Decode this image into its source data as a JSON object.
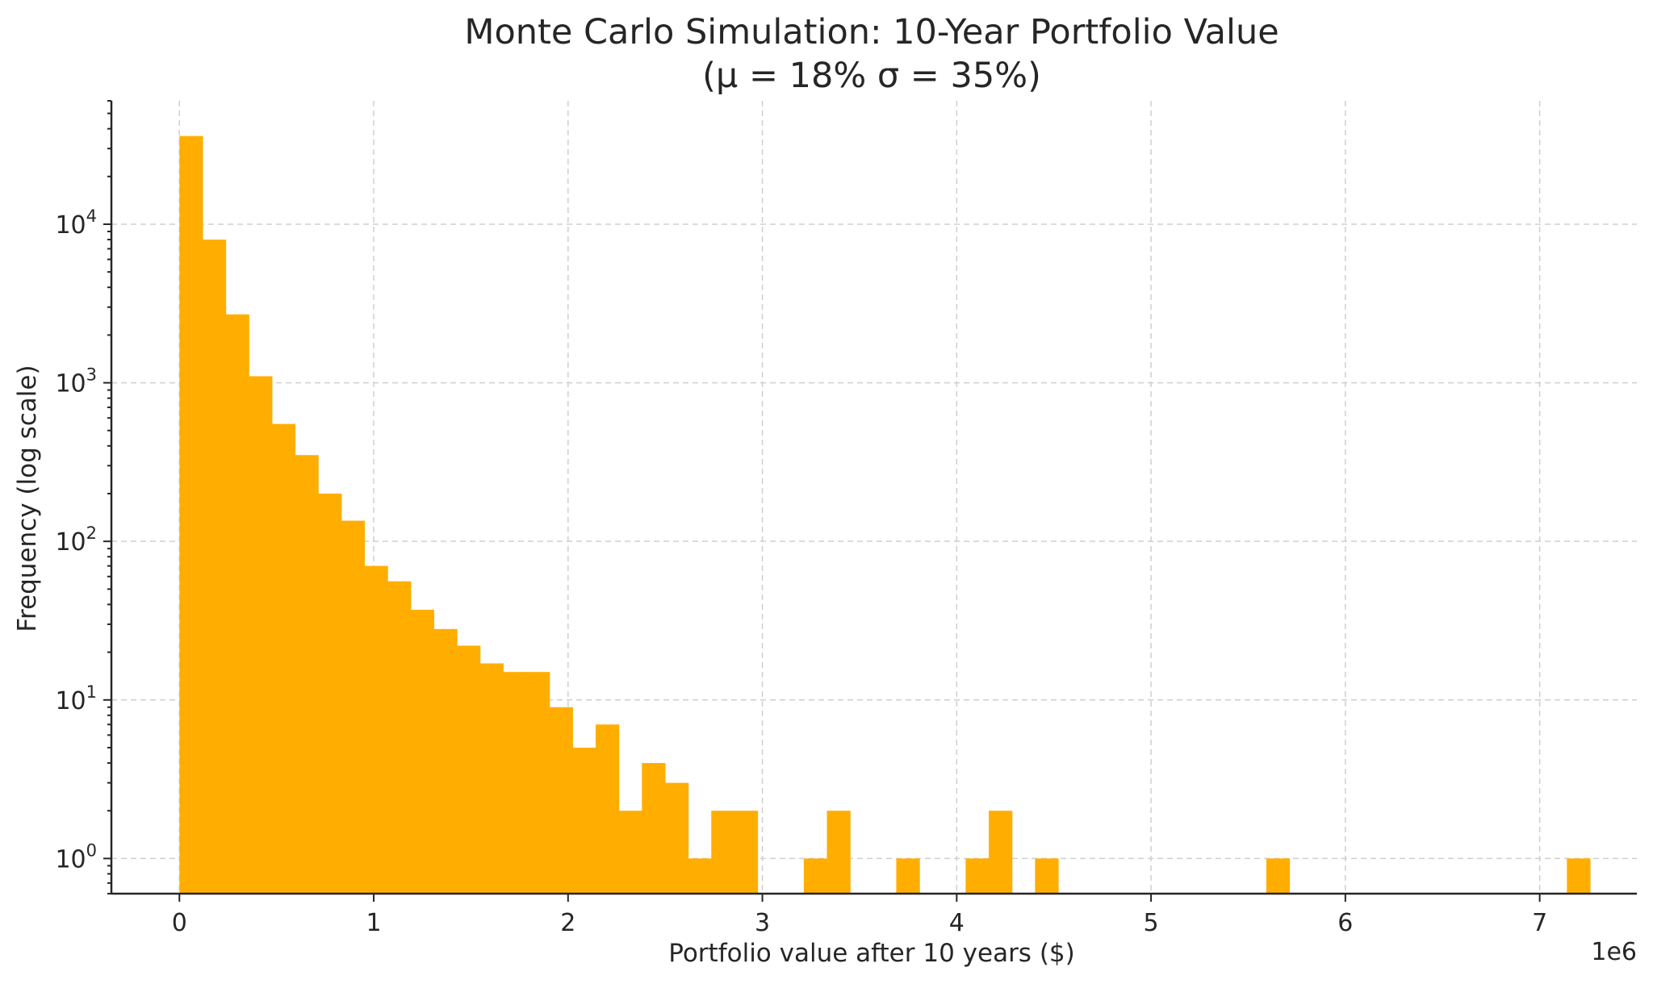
{
  "chart_data": {
    "type": "bar",
    "title": "Monte Carlo Simulation: 10-Year Portfolio Value",
    "subtitle": "(μ = 18%  σ = 35%)",
    "xlabel": "Portfolio value after 10 years ($)",
    "ylabel": "Frequency (log scale)",
    "x_offset_text": "1e6",
    "x_scale_multiplier": 1000000,
    "y_scale": "log",
    "xlim": [
      -350000,
      7500000
    ],
    "ylim": [
      0.6,
      60000
    ],
    "grid": true,
    "bar_color": "#FFAE00",
    "x_ticks": [
      {
        "value": 0,
        "label": "0"
      },
      {
        "value": 1000000,
        "label": "1"
      },
      {
        "value": 2000000,
        "label": "2"
      },
      {
        "value": 3000000,
        "label": "3"
      },
      {
        "value": 4000000,
        "label": "4"
      },
      {
        "value": 5000000,
        "label": "5"
      },
      {
        "value": 6000000,
        "label": "6"
      },
      {
        "value": 7000000,
        "label": "7"
      }
    ],
    "y_ticks": [
      {
        "value": 1,
        "base": "10",
        "exp": "0"
      },
      {
        "value": 10,
        "base": "10",
        "exp": "1"
      },
      {
        "value": 100,
        "base": "10",
        "exp": "2"
      },
      {
        "value": 1000,
        "base": "10",
        "exp": "3"
      },
      {
        "value": 10000,
        "base": "10",
        "exp": "4"
      }
    ],
    "bin_start": 0,
    "bin_width": 119000,
    "values": [
      36000,
      8000,
      2700,
      1100,
      550,
      350,
      200,
      135,
      70,
      56,
      37,
      28,
      22,
      17,
      15,
      15,
      9,
      5,
      7,
      2,
      4,
      3,
      1,
      2,
      2,
      0,
      0,
      1,
      2,
      0,
      0,
      1,
      0,
      0,
      1,
      2,
      0,
      1,
      0,
      0,
      0,
      0,
      0,
      0,
      0,
      0,
      0,
      1,
      0,
      0,
      0,
      0,
      0,
      0,
      0,
      0,
      0,
      0,
      0,
      0,
      1
    ]
  }
}
